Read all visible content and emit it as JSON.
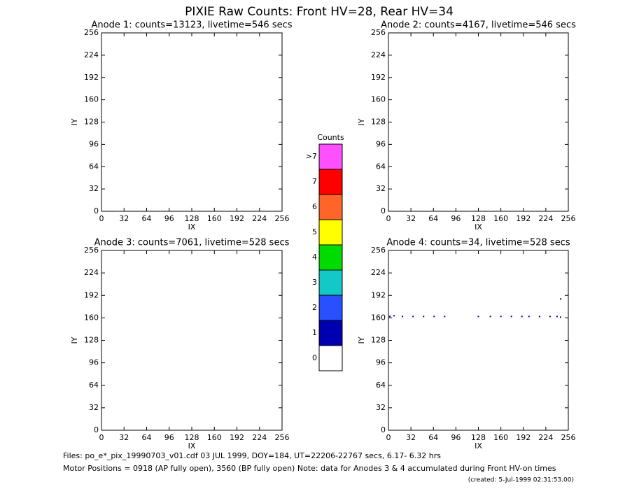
{
  "title": "PIXIE Raw Counts:  Front HV=28, Rear HV=34",
  "chart_data": [
    {
      "type": "scatter",
      "title": "Anode 1: counts=13123, livetime=546 secs",
      "xlabel": "IX",
      "ylabel": "IY",
      "xlim": [
        0,
        256
      ],
      "ylim": [
        0,
        256
      ],
      "xticks": [
        0,
        32,
        64,
        96,
        128,
        160,
        192,
        224,
        256
      ],
      "yticks": [
        0,
        32,
        64,
        96,
        128,
        160,
        192,
        224,
        256
      ],
      "color": "#0000b0",
      "x": [],
      "y": []
    },
    {
      "type": "scatter",
      "title": "Anode 2: counts=4167, livetime=546 secs",
      "xlabel": "IX",
      "ylabel": "IY",
      "xlim": [
        0,
        256
      ],
      "ylim": [
        0,
        256
      ],
      "xticks": [
        0,
        32,
        64,
        96,
        128,
        160,
        192,
        224,
        256
      ],
      "yticks": [
        0,
        32,
        64,
        96,
        128,
        160,
        192,
        224,
        256
      ],
      "color": "#0000b0",
      "x": [],
      "y": []
    },
    {
      "type": "scatter",
      "title": "Anode 3: counts=7061, livetime=528 secs",
      "xlabel": "IX",
      "ylabel": "IY",
      "xlim": [
        0,
        256
      ],
      "ylim": [
        0,
        256
      ],
      "xticks": [
        0,
        32,
        64,
        96,
        128,
        160,
        192,
        224,
        256
      ],
      "yticks": [
        0,
        32,
        64,
        96,
        128,
        160,
        192,
        224,
        256
      ],
      "color": "#0000b0",
      "x": [],
      "y": []
    },
    {
      "type": "scatter",
      "title": "Anode 4: counts=34, livetime=528 secs",
      "xlabel": "IX",
      "ylabel": "IY",
      "xlim": [
        0,
        256
      ],
      "ylim": [
        0,
        256
      ],
      "xticks": [
        0,
        32,
        64,
        96,
        128,
        160,
        192,
        224,
        256
      ],
      "yticks": [
        0,
        32,
        64,
        96,
        128,
        160,
        192,
        224,
        256
      ],
      "color": "#0000b0",
      "x": [
        2,
        8,
        20,
        35,
        50,
        65,
        80,
        128,
        145,
        160,
        175,
        190,
        200,
        215,
        230,
        240,
        245,
        245
      ],
      "y": [
        162,
        163,
        162,
        162,
        162,
        162,
        162,
        162,
        162,
        162,
        162,
        162,
        162,
        162,
        162,
        162,
        161,
        187
      ]
    }
  ],
  "colorbar": {
    "title": "Counts",
    "labels": [
      "0",
      "1",
      "2",
      "3",
      "4",
      "5",
      "6",
      "7",
      ">7"
    ],
    "colors": [
      "#ffffff",
      "#0000b0",
      "#2850ff",
      "#14c8c8",
      "#00dc00",
      "#ffff00",
      "#ff6428",
      "#ff0000",
      "#ff50ff"
    ]
  },
  "footer": {
    "files": "Files: po_e*_pix_19990703_v01.cdf    03 JUL 1999, DOY=184, UT=22206-22767 secs,  6.17- 6.32 hrs",
    "motor": "Motor Positions = 0918 (AP fully open), 3560 (BP fully open)    Note: data for Anodes 3 & 4 accumulated during Front HV-on times",
    "created": "(created:  5-Jul-1999 02:31:53.00)"
  }
}
